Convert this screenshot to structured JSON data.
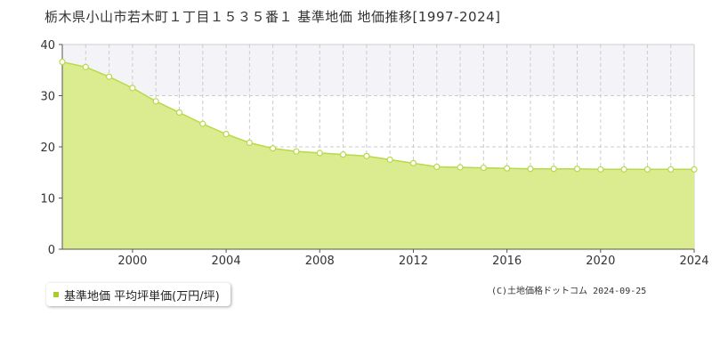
{
  "page": {
    "title": "栃木県小山市若木町１丁目１５３５番１ 基準地価 地価推移[1997-2024]",
    "copyright": "(C)土地価格ドットコム 2024-09-25"
  },
  "colors": {
    "area_fill": "#dbeb8f",
    "line": "#b8d949",
    "marker_fill": "#ffffff",
    "band": "#f4f4f8",
    "grid": "#cccccc",
    "legend_marker": "#a6cc2e"
  },
  "chart_data": {
    "type": "area",
    "ylim": [
      0,
      40
    ],
    "xlim": [
      1997,
      2024
    ],
    "y_ticks": [
      "0",
      "10",
      "20",
      "30",
      "40"
    ],
    "x_ticks": [
      "2000",
      "2004",
      "2008",
      "2012",
      "2016",
      "2020",
      "2024"
    ],
    "x_tick_values": [
      2000,
      2004,
      2008,
      2012,
      2016,
      2020,
      2024
    ],
    "y_tick_values": [
      0,
      10,
      20,
      30,
      40
    ],
    "band": [
      30,
      40
    ],
    "grid": true,
    "legend_position": "bottom-left",
    "series": [
      {
        "name": "基準地価 平均坪単価(万円/坪)",
        "x": [
          1997,
          1998,
          1999,
          2000,
          2001,
          2002,
          2003,
          2004,
          2005,
          2006,
          2007,
          2008,
          2009,
          2010,
          2011,
          2012,
          2013,
          2014,
          2015,
          2016,
          2017,
          2018,
          2019,
          2020,
          2021,
          2022,
          2023,
          2024
        ],
        "values": [
          36.6,
          35.6,
          33.7,
          31.5,
          28.9,
          26.7,
          24.5,
          22.5,
          20.8,
          19.7,
          19.1,
          18.8,
          18.5,
          18.2,
          17.5,
          16.8,
          16.1,
          16.0,
          15.9,
          15.8,
          15.7,
          15.7,
          15.7,
          15.6,
          15.6,
          15.6,
          15.6,
          15.6
        ]
      }
    ]
  }
}
